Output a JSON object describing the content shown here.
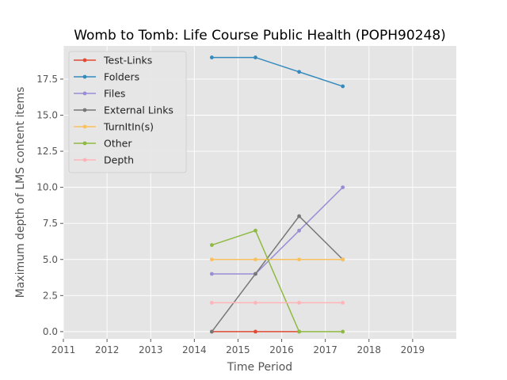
{
  "chart_data": {
    "type": "line",
    "title": "Womb to Tomb: Life Course Public Health (POPH90248)",
    "xlabel": "Time Period",
    "ylabel": "Maximum depth of LMS content items",
    "xlim": [
      2011,
      2020
    ],
    "ylim": [
      -0.5,
      19.8
    ],
    "xticks": [
      2011,
      2012,
      2013,
      2014,
      2015,
      2016,
      2017,
      2018,
      2019
    ],
    "xtick_labels": [
      "2011",
      "2012",
      "2013",
      "2014",
      "2015",
      "2016",
      "2017",
      "2018",
      "2019"
    ],
    "yticks": [
      0,
      2.5,
      5,
      7.5,
      10,
      12.5,
      15,
      17.5
    ],
    "ytick_labels": [
      "0.0",
      "2.5",
      "5.0",
      "7.5",
      "10.0",
      "12.5",
      "15.0",
      "17.5"
    ],
    "grid": true,
    "legend_position": "upper-left",
    "x": [
      2014.4,
      2015.4,
      2016.4,
      2017.4
    ],
    "series": [
      {
        "name": "Test-Links",
        "color": "#e24a33",
        "values": [
          0,
          0,
          0,
          null
        ]
      },
      {
        "name": "Folders",
        "color": "#348abd",
        "values": [
          19,
          19,
          18,
          17
        ]
      },
      {
        "name": "Files",
        "color": "#988ed5",
        "values": [
          4,
          4,
          7,
          10
        ]
      },
      {
        "name": "External Links",
        "color": "#777777",
        "values": [
          0,
          4,
          8,
          5
        ]
      },
      {
        "name": "TurnItIn(s)",
        "color": "#fbc15e",
        "values": [
          5,
          5,
          5,
          5
        ]
      },
      {
        "name": "Other",
        "color": "#8eba42",
        "values": [
          6,
          7,
          0,
          0
        ]
      },
      {
        "name": "Depth",
        "color": "#ffb5b8",
        "values": [
          2,
          2,
          2,
          2
        ]
      }
    ]
  }
}
